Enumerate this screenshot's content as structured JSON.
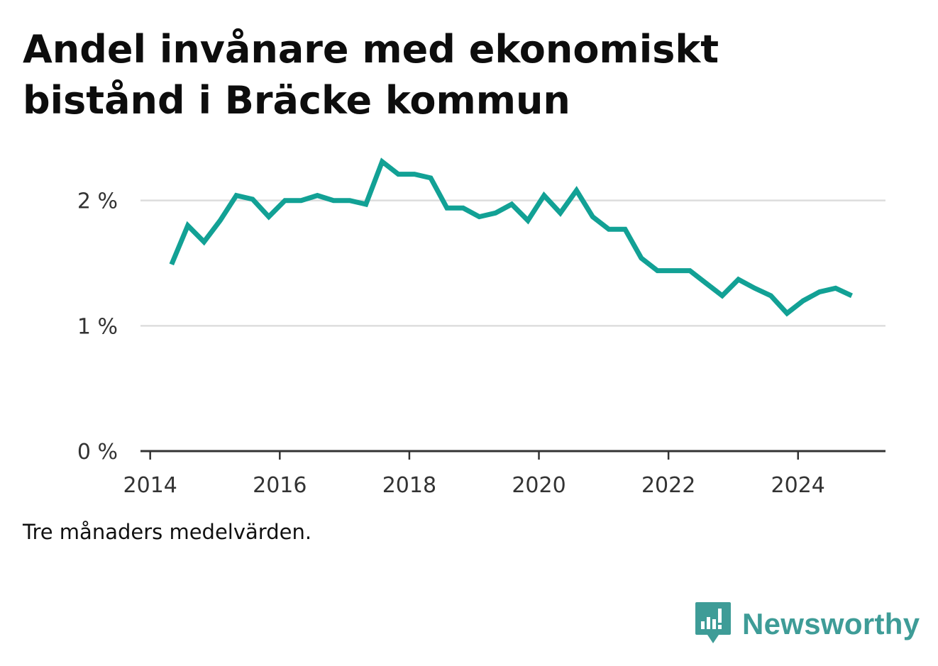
{
  "title_lines": [
    "Andel invånare med ekonomiskt",
    "bistånd i Bräcke kommun"
  ],
  "note": "Tre månaders medelvärden.",
  "brand": {
    "name": "Newsworthy",
    "icon": "newsworthy-logo-icon",
    "color": "#3e9c97"
  },
  "chart_data": {
    "type": "line",
    "title": "Andel invånare med ekonomiskt bistånd i Bräcke kommun",
    "xlabel": "",
    "ylabel": "",
    "xlim": [
      2013.85,
      2025.35
    ],
    "ylim": [
      0,
      2.4
    ],
    "y_ticks": [
      {
        "value": 0,
        "label": "0 %"
      },
      {
        "value": 1,
        "label": "1 %"
      },
      {
        "value": 2,
        "label": "2 %"
      }
    ],
    "x_ticks": [
      {
        "value": 2014,
        "label": "2014"
      },
      {
        "value": 2016,
        "label": "2016"
      },
      {
        "value": 2018,
        "label": "2018"
      },
      {
        "value": 2020,
        "label": "2020"
      },
      {
        "value": 2022,
        "label": "2022"
      },
      {
        "value": 2024,
        "label": "2024"
      }
    ],
    "grid": true,
    "line_color": "#12a195",
    "series": [
      {
        "x": [
          2014.33,
          2014.58,
          2014.83,
          2015.08,
          2015.33,
          2015.58,
          2015.83,
          2016.08,
          2016.33,
          2016.58,
          2016.83,
          2017.08,
          2017.33,
          2017.58,
          2017.83,
          2018.08,
          2018.33,
          2018.58,
          2018.83,
          2019.08,
          2019.33,
          2019.58,
          2019.83,
          2020.08,
          2020.33,
          2020.58,
          2020.83,
          2021.08,
          2021.33,
          2021.58,
          2021.83,
          2022.08,
          2022.33,
          2022.58,
          2022.83,
          2023.08,
          2023.33,
          2023.58,
          2023.83,
          2024.08,
          2024.33,
          2024.58,
          2024.83
        ],
        "values": [
          1.49,
          1.8,
          1.67,
          1.84,
          2.04,
          2.01,
          1.87,
          2.0,
          2.0,
          2.04,
          2.0,
          2.0,
          1.97,
          2.31,
          2.21,
          2.21,
          2.18,
          1.94,
          1.94,
          1.87,
          1.9,
          1.97,
          1.84,
          2.04,
          1.9,
          2.08,
          1.87,
          1.77,
          1.77,
          1.54,
          1.44,
          1.44,
          1.44,
          1.34,
          1.24,
          1.37,
          1.3,
          1.24,
          1.1,
          1.2,
          1.27,
          1.3,
          1.24
        ]
      }
    ]
  }
}
